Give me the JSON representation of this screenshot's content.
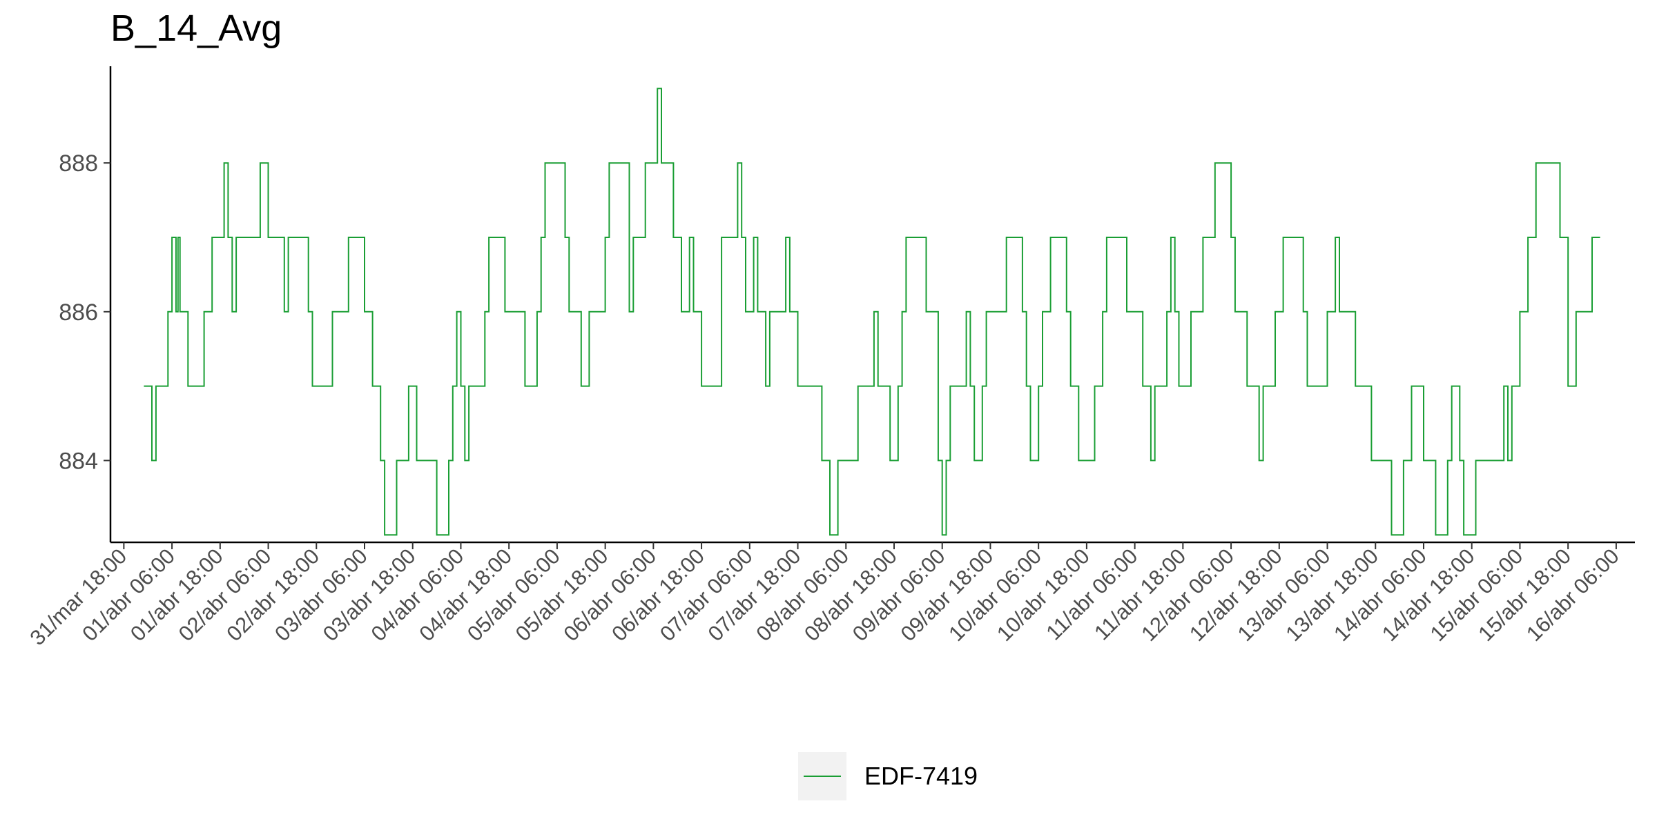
{
  "chart_data": {
    "type": "line",
    "title": "B_14_Avg",
    "xlabel": "",
    "ylabel": "",
    "grid": false,
    "legend_position": "bottom",
    "ylim": [
      882.9,
      889.3
    ],
    "yticks": [
      884,
      886,
      888
    ],
    "xlim": [
      "2024-03-31T14:40",
      "2024-04-16T10:40"
    ],
    "xticks": [
      "31/mar 18:00",
      "01/abr 06:00",
      "01/abr 18:00",
      "02/abr 06:00",
      "02/abr 18:00",
      "03/abr 06:00",
      "03/abr 18:00",
      "04/abr 06:00",
      "04/abr 18:00",
      "05/abr 06:00",
      "05/abr 18:00",
      "06/abr 06:00",
      "06/abr 18:00",
      "07/abr 06:00",
      "07/abr 18:00",
      "08/abr 06:00",
      "08/abr 18:00",
      "09/abr 06:00",
      "09/abr 18:00",
      "10/abr 06:00",
      "10/abr 18:00",
      "11/abr 06:00",
      "11/abr 18:00",
      "12/abr 06:00",
      "12/abr 18:00",
      "13/abr 06:00",
      "13/abr 18:00",
      "14/abr 06:00",
      "14/abr 18:00",
      "15/abr 06:00",
      "15/abr 18:00",
      "16/abr 06:00"
    ],
    "series": [
      {
        "name": "EDF-7419",
        "color": "#1a9e34",
        "step": true,
        "x": [
          "2024-03-31T23:00",
          "2024-04-01T01:00",
          "2024-04-01T02:00",
          "2024-04-01T05:00",
          "2024-04-01T06:00",
          "2024-04-01T07:00",
          "2024-04-01T07:30",
          "2024-04-01T08:00",
          "2024-04-01T10:00",
          "2024-04-01T14:00",
          "2024-04-01T16:00",
          "2024-04-01T19:00",
          "2024-04-01T20:00",
          "2024-04-01T21:00",
          "2024-04-01T22:00",
          "2024-04-02T04:00",
          "2024-04-02T06:00",
          "2024-04-02T10:00",
          "2024-04-02T11:00",
          "2024-04-02T16:00",
          "2024-04-02T17:00",
          "2024-04-02T22:00",
          "2024-04-03T02:00",
          "2024-04-03T06:00",
          "2024-04-03T08:00",
          "2024-04-03T10:00",
          "2024-04-03T11:00",
          "2024-04-03T14:00",
          "2024-04-03T17:00",
          "2024-04-03T19:00",
          "2024-04-04T00:00",
          "2024-04-04T03:00",
          "2024-04-04T04:00",
          "2024-04-04T05:00",
          "2024-04-04T06:00",
          "2024-04-04T07:00",
          "2024-04-04T08:00",
          "2024-04-04T12:00",
          "2024-04-04T13:00",
          "2024-04-04T17:00",
          "2024-04-04T22:00",
          "2024-04-05T01:00",
          "2024-04-05T02:00",
          "2024-04-05T03:00",
          "2024-04-05T08:00",
          "2024-04-05T09:00",
          "2024-04-05T12:00",
          "2024-04-05T14:00",
          "2024-04-05T18:00",
          "2024-04-05T19:00",
          "2024-04-06T00:00",
          "2024-04-06T01:00",
          "2024-04-06T04:00",
          "2024-04-06T07:00",
          "2024-04-06T08:00",
          "2024-04-06T11:00",
          "2024-04-06T13:00",
          "2024-04-06T15:00",
          "2024-04-06T16:00",
          "2024-04-06T18:00",
          "2024-04-06T23:00",
          "2024-04-07T03:00",
          "2024-04-07T04:00",
          "2024-04-07T05:00",
          "2024-04-07T07:00",
          "2024-04-07T08:00",
          "2024-04-07T10:00",
          "2024-04-07T11:00",
          "2024-04-07T15:00",
          "2024-04-07T16:00",
          "2024-04-07T18:00",
          "2024-04-08T00:00",
          "2024-04-08T02:00",
          "2024-04-08T04:00",
          "2024-04-08T09:00",
          "2024-04-08T13:00",
          "2024-04-08T14:00",
          "2024-04-08T17:00",
          "2024-04-08T19:00",
          "2024-04-08T20:00",
          "2024-04-08T21:00",
          "2024-04-09T02:00",
          "2024-04-09T05:00",
          "2024-04-09T06:00",
          "2024-04-09T07:00",
          "2024-04-09T08:00",
          "2024-04-09T12:00",
          "2024-04-09T13:00",
          "2024-04-09T14:00",
          "2024-04-09T16:00",
          "2024-04-09T17:00",
          "2024-04-09T22:00",
          "2024-04-10T02:00",
          "2024-04-10T03:00",
          "2024-04-10T04:00",
          "2024-04-10T06:00",
          "2024-04-10T07:00",
          "2024-04-10T09:00",
          "2024-04-10T13:00",
          "2024-04-10T14:00",
          "2024-04-10T16:00",
          "2024-04-10T20:00",
          "2024-04-10T22:00",
          "2024-04-10T23:00",
          "2024-04-11T04:00",
          "2024-04-11T08:00",
          "2024-04-11T10:00",
          "2024-04-11T11:00",
          "2024-04-11T14:00",
          "2024-04-11T15:00",
          "2024-04-11T16:00",
          "2024-04-11T17:00",
          "2024-04-11T20:00",
          "2024-04-11T23:00",
          "2024-04-12T02:00",
          "2024-04-12T06:00",
          "2024-04-12T07:00",
          "2024-04-12T10:00",
          "2024-04-12T13:00",
          "2024-04-12T14:00",
          "2024-04-12T17:00",
          "2024-04-12T19:00",
          "2024-04-13T00:00",
          "2024-04-13T01:00",
          "2024-04-13T06:00",
          "2024-04-13T08:00",
          "2024-04-13T09:00",
          "2024-04-13T13:00",
          "2024-04-13T17:00",
          "2024-04-13T22:00",
          "2024-04-14T01:00",
          "2024-04-14T03:00",
          "2024-04-14T06:00",
          "2024-04-14T09:00",
          "2024-04-14T12:00",
          "2024-04-14T13:00",
          "2024-04-14T15:00",
          "2024-04-14T16:00",
          "2024-04-14T19:00",
          "2024-04-15T02:00",
          "2024-04-15T03:00",
          "2024-04-15T04:00",
          "2024-04-15T06:00",
          "2024-04-15T08:00",
          "2024-04-15T10:00",
          "2024-04-15T16:00",
          "2024-04-15T18:00",
          "2024-04-15T20:00",
          "2024-04-16T00:00"
        ],
        "y": [
          885,
          884,
          885,
          886,
          887,
          886,
          887,
          886,
          885,
          886,
          887,
          888,
          887,
          886,
          887,
          888,
          887,
          886,
          887,
          886,
          885,
          886,
          887,
          886,
          885,
          884,
          883,
          884,
          885,
          884,
          883,
          884,
          885,
          886,
          885,
          884,
          885,
          886,
          887,
          886,
          885,
          886,
          887,
          888,
          887,
          886,
          885,
          886,
          887,
          888,
          886,
          887,
          888,
          889,
          888,
          887,
          886,
          887,
          886,
          885,
          887,
          888,
          887,
          886,
          887,
          886,
          885,
          886,
          887,
          886,
          885,
          884,
          883,
          884,
          885,
          886,
          885,
          884,
          885,
          886,
          887,
          886,
          884,
          883,
          884,
          885,
          886,
          885,
          884,
          885,
          886,
          887,
          886,
          885,
          884,
          885,
          886,
          887,
          886,
          885,
          884,
          885,
          886,
          887,
          886,
          885,
          884,
          885,
          886,
          887,
          886,
          885,
          886,
          887,
          888,
          887,
          886,
          885,
          884,
          885,
          886,
          887,
          886,
          885,
          886,
          887,
          886,
          885,
          884,
          883,
          884,
          885,
          884,
          883,
          884,
          885,
          884,
          883,
          884,
          885,
          884,
          885,
          886,
          887,
          888,
          887,
          885,
          886,
          887
        ]
      }
    ]
  }
}
